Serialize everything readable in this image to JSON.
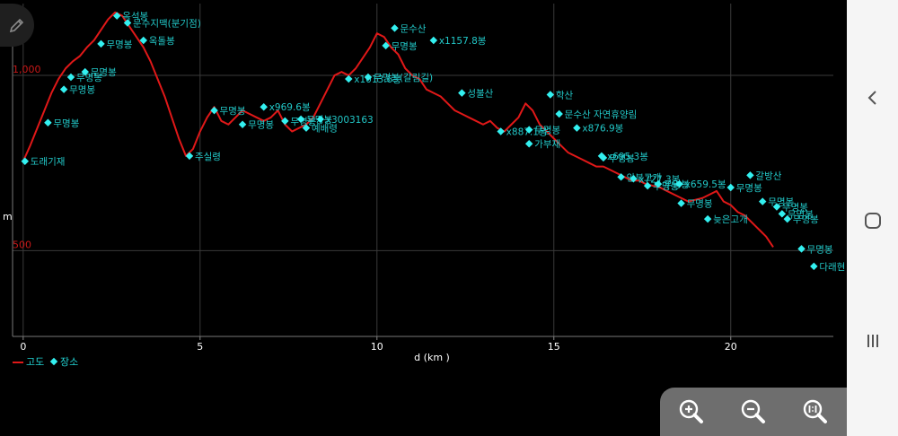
{
  "legend": {
    "elevation_label": "고도",
    "places_label": "장소"
  },
  "colors": {
    "elevation_line": "#e01818",
    "marker": "#33f0f0",
    "label": "#22c8c8",
    "ytick": "#c81818",
    "grid": "#3a3a3a",
    "axis_text": "#ffffff"
  },
  "icons": {
    "edit": "pencil-icon",
    "zoom_in": "zoom-in-icon",
    "zoom_out": "zoom-out-icon",
    "zoom_reset": "zoom-reset-icon",
    "back": "back-icon",
    "home": "home-icon",
    "recents": "recents-icon"
  },
  "chart_data": {
    "type": "line",
    "xlabel": "d (km )",
    "ylabel": "m",
    "xlim": [
      -0.3,
      22.9
    ],
    "ylim": [
      255,
      1205
    ],
    "xticks": [
      0,
      5,
      10,
      15,
      20
    ],
    "yticks": [
      500,
      1000
    ],
    "ytick_labels": [
      "500",
      "1,000"
    ],
    "grid": true,
    "legend_position": "bottom-left",
    "series": [
      {
        "name": "고도",
        "x": [
          0,
          0.2,
          0.4,
          0.6,
          0.8,
          1.0,
          1.2,
          1.4,
          1.6,
          1.8,
          2.0,
          2.2,
          2.4,
          2.6,
          2.8,
          3.0,
          3.2,
          3.4,
          3.6,
          3.8,
          4.0,
          4.2,
          4.4,
          4.6,
          4.8,
          5.0,
          5.2,
          5.4,
          5.6,
          5.8,
          6.0,
          6.2,
          6.4,
          6.6,
          6.8,
          7.0,
          7.2,
          7.4,
          7.6,
          7.8,
          8.0,
          8.2,
          8.4,
          8.6,
          8.8,
          9.0,
          9.2,
          9.4,
          9.6,
          9.8,
          10.0,
          10.2,
          10.4,
          10.6,
          10.8,
          11.0,
          11.2,
          11.4,
          11.6,
          11.8,
          12.0,
          12.2,
          12.4,
          12.6,
          12.8,
          13.0,
          13.2,
          13.4,
          13.6,
          13.8,
          14.0,
          14.2,
          14.4,
          14.6,
          14.8,
          15.0,
          15.2,
          15.4,
          15.6,
          15.8,
          16.0,
          16.2,
          16.4,
          16.6,
          16.8,
          17.0,
          17.2,
          17.4,
          17.6,
          17.8,
          18.0,
          18.2,
          18.4,
          18.6,
          18.8,
          19.0,
          19.2,
          19.4,
          19.6,
          19.8,
          20.0,
          20.2,
          20.4,
          20.6,
          20.8,
          21.0,
          21.2
        ],
        "y": [
          755,
          800,
          850,
          900,
          950,
          990,
          1020,
          1040,
          1055,
          1080,
          1100,
          1130,
          1160,
          1180,
          1170,
          1140,
          1110,
          1080,
          1040,
          990,
          940,
          880,
          820,
          770,
          790,
          840,
          880,
          910,
          870,
          860,
          880,
          900,
          890,
          880,
          870,
          880,
          900,
          860,
          840,
          850,
          860,
          880,
          920,
          960,
          1000,
          1010,
          1000,
          1020,
          1050,
          1080,
          1120,
          1110,
          1080,
          1060,
          1020,
          1000,
          990,
          960,
          950,
          940,
          920,
          900,
          890,
          880,
          870,
          860,
          870,
          850,
          840,
          860,
          880,
          920,
          900,
          860,
          840,
          820,
          800,
          780,
          770,
          760,
          750,
          740,
          740,
          730,
          720,
          710,
          700,
          700,
          690,
          685,
          680,
          670,
          660,
          650,
          640,
          645,
          650,
          660,
          670,
          640,
          630,
          610,
          600,
          580,
          560,
          540,
          510
        ]
      }
    ],
    "places": [
      {
        "name": "도래기재",
        "x": 0.05,
        "y": 755
      },
      {
        "name": "무명봉",
        "x": 0.7,
        "y": 865
      },
      {
        "name": "무명봉",
        "x": 1.15,
        "y": 960
      },
      {
        "name": "무명봉",
        "x": 1.35,
        "y": 995
      },
      {
        "name": "무명봉",
        "x": 1.75,
        "y": 1010
      },
      {
        "name": "무명봉",
        "x": 2.2,
        "y": 1090
      },
      {
        "name": "옥석봉",
        "x": 2.65,
        "y": 1170
      },
      {
        "name": "문수지맥(분기점)",
        "x": 2.95,
        "y": 1150
      },
      {
        "name": "옥돌봉",
        "x": 3.4,
        "y": 1100
      },
      {
        "name": "주실령",
        "x": 4.7,
        "y": 770
      },
      {
        "name": "무명봉",
        "x": 5.4,
        "y": 900
      },
      {
        "name": "무명봉",
        "x": 6.2,
        "y": 860
      },
      {
        "name": "x969.6봉",
        "x": 6.8,
        "y": 910
      },
      {
        "name": "무명봉",
        "x": 7.4,
        "y": 870
      },
      {
        "name": "예배령",
        "x": 8.0,
        "y": 850
      },
      {
        "name": "무명봉",
        "x": 7.85,
        "y": 875
      },
      {
        "name": "x3003163",
        "x": 8.4,
        "y": 875
      },
      {
        "name": "x1013.6봉",
        "x": 9.2,
        "y": 990
      },
      {
        "name": "무명봉(갈림길)",
        "x": 9.75,
        "y": 995
      },
      {
        "name": "무명봉",
        "x": 10.25,
        "y": 1085
      },
      {
        "name": "문수산",
        "x": 10.5,
        "y": 1135
      },
      {
        "name": "x1157.8봉",
        "x": 11.6,
        "y": 1100
      },
      {
        "name": "성불산",
        "x": 12.4,
        "y": 950
      },
      {
        "name": "x887.1봉",
        "x": 13.5,
        "y": 840
      },
      {
        "name": "무명봉",
        "x": 14.3,
        "y": 845
      },
      {
        "name": "학산",
        "x": 14.9,
        "y": 945
      },
      {
        "name": "가부재",
        "x": 14.3,
        "y": 805
      },
      {
        "name": "문수산 자연휴양림",
        "x": 15.15,
        "y": 890
      },
      {
        "name": "x876.9봉",
        "x": 15.65,
        "y": 850
      },
      {
        "name": "x695.3봉",
        "x": 16.35,
        "y": 770
      },
      {
        "name": "무명봉",
        "x": 16.4,
        "y": 765
      },
      {
        "name": "안부고개",
        "x": 16.9,
        "y": 710
      },
      {
        "name": "x727.3봉",
        "x": 17.25,
        "y": 705
      },
      {
        "name": "무명봉",
        "x": 17.65,
        "y": 685
      },
      {
        "name": "무명봉",
        "x": 17.95,
        "y": 690
      },
      {
        "name": "x659.5봉",
        "x": 18.55,
        "y": 690
      },
      {
        "name": "무명봉",
        "x": 18.6,
        "y": 635
      },
      {
        "name": "늦은고개",
        "x": 19.35,
        "y": 590
      },
      {
        "name": "무명봉",
        "x": 20.0,
        "y": 680
      },
      {
        "name": "갈방산",
        "x": 20.55,
        "y": 715
      },
      {
        "name": "무명봉",
        "x": 20.9,
        "y": 640
      },
      {
        "name": "무명봉",
        "x": 21.3,
        "y": 625
      },
      {
        "name": "무명봉",
        "x": 21.45,
        "y": 605
      },
      {
        "name": "무명봉",
        "x": 21.6,
        "y": 590
      },
      {
        "name": "무명봉",
        "x": 22.0,
        "y": 505
      },
      {
        "name": "다래현",
        "x": 22.35,
        "y": 455
      }
    ]
  }
}
